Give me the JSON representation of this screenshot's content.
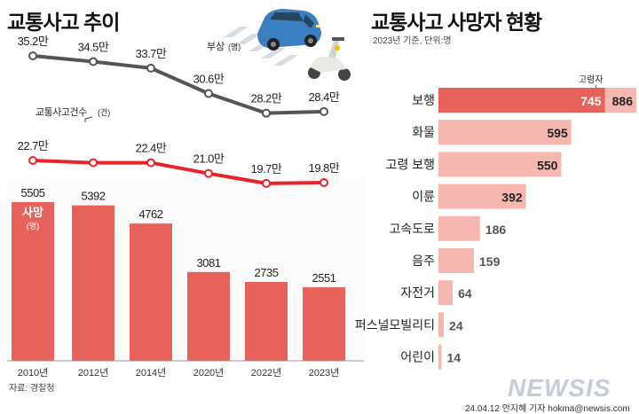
{
  "left": {
    "title": "교통사고 추이",
    "source": "자료: 경찰청"
  },
  "right": {
    "title": "교통사고 사망자 현황",
    "subtitle": "2023년 기준, 단위:명"
  },
  "credit": "24.04.12 안지혜 기자 hokma@newsis.com",
  "logo": "NEWSIS",
  "chart_data": [
    {
      "type": "bar",
      "title": "교통사고 추이",
      "categories": [
        "2010년",
        "2012년",
        "2014년",
        "2020년",
        "2022년",
        "2023년"
      ],
      "series": [
        {
          "name": "부상(명)",
          "kind": "line",
          "values": [
            35.2,
            34.5,
            33.7,
            30.6,
            28.2,
            28.4
          ],
          "labels": [
            "35.2만",
            "34.5만",
            "33.7만",
            "30.6만",
            "28.2만",
            "28.4만"
          ],
          "color": "#555555"
        },
        {
          "name": "교통사고건수(건)",
          "kind": "line",
          "values": [
            22.7,
            22.4,
            22.4,
            21.0,
            19.7,
            19.8
          ],
          "labels": [
            "22.7만",
            "",
            "22.4만",
            "21.0만",
            "19.7만",
            "19.8만"
          ],
          "color": "#e8232a"
        },
        {
          "name": "사망(명)",
          "kind": "bar",
          "values": [
            5505,
            5392,
            4762,
            3081,
            2735,
            2551
          ],
          "labels": [
            "5505",
            "5392",
            "4762",
            "3081",
            "2735",
            "2551"
          ],
          "color": "#e8625c"
        }
      ],
      "legend_labels": {
        "injury": "부상",
        "injury_unit": "(명)",
        "accidents": "교통사고건수",
        "accidents_unit": "(건)",
        "deaths": "사망",
        "deaths_unit": "(명)"
      }
    },
    {
      "type": "bar",
      "orientation": "horizontal",
      "title": "교통사고 사망자 현황",
      "categories": [
        "보행",
        "화물",
        "고령 보행",
        "이륜",
        "고속도로",
        "음주",
        "자전거",
        "퍼스널모빌리티",
        "어린이"
      ],
      "values": [
        886,
        595,
        550,
        392,
        186,
        159,
        64,
        24,
        14
      ],
      "labels": [
        "886",
        "595",
        "550",
        "392",
        "186",
        "159",
        "64",
        "24",
        "14"
      ],
      "highlight": {
        "category": "보행",
        "name": "고령자",
        "value": 745,
        "label": "745"
      },
      "colors": {
        "base": "#f7b7b1",
        "highlight": "#e8625c"
      }
    }
  ]
}
